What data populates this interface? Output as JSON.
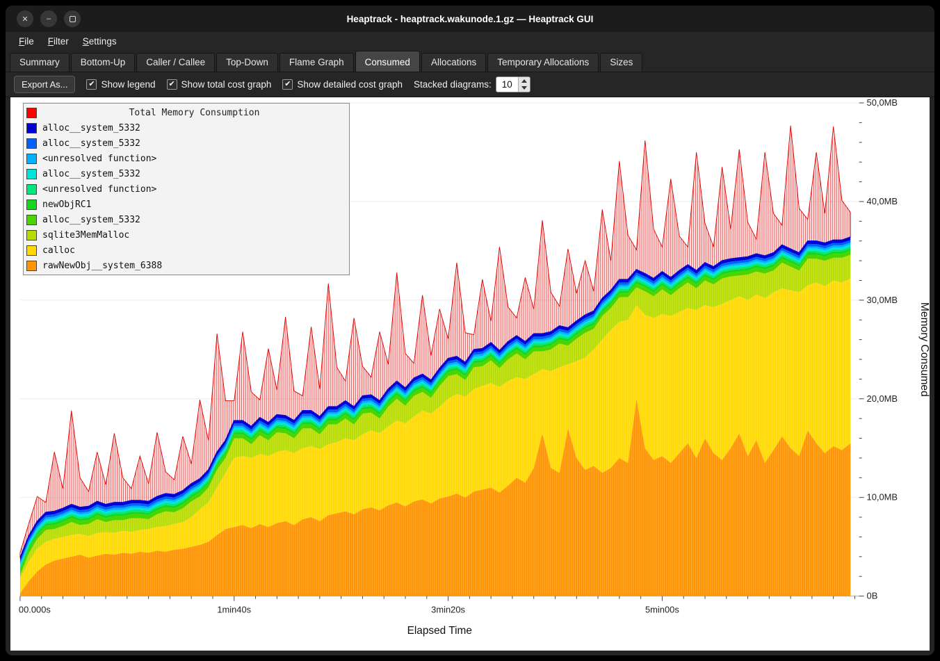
{
  "window": {
    "title": "Heaptrack - heaptrack.wakunode.1.gz — Heaptrack GUI",
    "controls": [
      {
        "name": "close",
        "glyph": "✕"
      },
      {
        "name": "minimize",
        "glyph": "–"
      },
      {
        "name": "maximize",
        "glyph": ""
      }
    ]
  },
  "menubar": {
    "items": [
      "File",
      "Filter",
      "Settings"
    ]
  },
  "tabs": {
    "active": "Consumed",
    "items": [
      "Summary",
      "Bottom-Up",
      "Caller / Callee",
      "Top-Down",
      "Flame Graph",
      "Consumed",
      "Allocations",
      "Temporary Allocations",
      "Sizes"
    ]
  },
  "toolbar": {
    "export_label": "Export As...",
    "checkboxes": [
      {
        "label": "Show legend",
        "checked": true
      },
      {
        "label": "Show total cost graph",
        "checked": true
      },
      {
        "label": "Show detailed cost graph",
        "checked": true
      }
    ],
    "stacked_label": "Stacked diagrams:",
    "stacked_value": "10"
  },
  "legend": {
    "title": "Total Memory Consumption",
    "title_color": "#ff0000",
    "entries": [
      {
        "label": "alloc__system_5332",
        "color": "#0000d0"
      },
      {
        "label": "alloc__system_5332",
        "color": "#0061ff"
      },
      {
        "label": "<unresolved function>",
        "color": "#00b2ff"
      },
      {
        "label": "alloc__system_5332",
        "color": "#00e5db"
      },
      {
        "label": "<unresolved function>",
        "color": "#00e87d"
      },
      {
        "label": "newObjRC1",
        "color": "#16d620"
      },
      {
        "label": "alloc__system_5332",
        "color": "#4ad400"
      },
      {
        "label": "sqlite3MemMalloc",
        "color": "#b8dc00"
      },
      {
        "label": "calloc",
        "color": "#ffd900"
      },
      {
        "label": "rawNewObj__system_6388",
        "color": "#ff9400"
      }
    ]
  },
  "chart_data": {
    "type": "area",
    "title": "Total Memory Consumption",
    "xlabel": "Elapsed Time",
    "ylabel": "Memory Consumed",
    "xlim": [
      0,
      392
    ],
    "ylim": [
      0,
      50
    ],
    "x_step": 4,
    "x_ticks": [
      {
        "t": 0,
        "label": "00.000s"
      },
      {
        "t": 100,
        "label": "1min40s"
      },
      {
        "t": 200,
        "label": "3min20s"
      },
      {
        "t": 300,
        "label": "5min00s"
      }
    ],
    "y_ticks": [
      {
        "v": 0,
        "label": "0B"
      },
      {
        "v": 10,
        "label": "10,0MB"
      },
      {
        "v": 20,
        "label": "20,0MB"
      },
      {
        "v": 30,
        "label": "30,0MB"
      },
      {
        "v": 40,
        "label": "40,0MB"
      },
      {
        "v": 50,
        "label": "50,0MB"
      }
    ],
    "units": "MB",
    "series": [
      {
        "name": "rawNewObj__system_6388",
        "color": "#ff9400",
        "striped": true,
        "values": [
          0.3,
          1.5,
          2.5,
          3.2,
          3.6,
          3.8,
          4.0,
          4.2,
          3.9,
          4.1,
          4.3,
          4.2,
          4.4,
          4.3,
          4.5,
          4.4,
          4.6,
          4.5,
          4.7,
          4.8,
          5.0,
          5.2,
          5.5,
          6.2,
          6.8,
          7.0,
          7.2,
          6.9,
          7.3,
          7.0,
          7.4,
          7.6,
          7.2,
          7.8,
          8.0,
          7.6,
          8.2,
          8.4,
          8.6,
          8.3,
          8.8,
          9.0,
          8.7,
          9.2,
          9.5,
          9.1,
          9.6,
          9.8,
          9.4,
          9.9,
          10.1,
          10.4,
          10.0,
          10.6,
          10.8,
          11.0,
          10.5,
          11.2,
          12.0,
          11.5,
          13.0,
          16.5,
          13.0,
          12.5,
          17.0,
          14.0,
          12.8,
          13.2,
          12.5,
          13.0,
          14.0,
          13.5,
          20.0,
          15.0,
          13.8,
          14.2,
          13.5,
          14.5,
          15.5,
          14.0,
          16.0,
          14.5,
          13.8,
          15.0,
          16.5,
          14.2,
          15.8,
          13.5,
          14.8,
          16.2,
          15.0,
          14.2,
          16.8,
          15.5,
          14.5,
          15.2,
          14.8,
          15.5
        ]
      },
      {
        "name": "calloc",
        "color": "#ffd900",
        "striped": true,
        "values": [
          1.5,
          2.0,
          2.3,
          2.3,
          2.2,
          2.2,
          2.2,
          2.1,
          2.2,
          2.3,
          2.2,
          2.2,
          2.2,
          2.2,
          2.2,
          2.4,
          2.4,
          2.6,
          2.6,
          2.7,
          3.0,
          3.6,
          4.0,
          4.8,
          5.7,
          7.0,
          7.0,
          7.1,
          7.1,
          7.2,
          7.2,
          7.2,
          7.3,
          7.2,
          7.2,
          7.3,
          7.2,
          7.2,
          7.4,
          7.5,
          7.6,
          7.8,
          7.8,
          8.0,
          8.3,
          8.4,
          8.6,
          9.0,
          9.1,
          9.3,
          9.9,
          10.1,
          10.2,
          10.4,
          10.5,
          10.6,
          10.7,
          10.6,
          10.2,
          10.5,
          9.5,
          6.5,
          9.8,
          10.7,
          6.5,
          9.8,
          11.4,
          11.8,
          13.5,
          14.0,
          13.8,
          14.5,
          9.5,
          13.5,
          14.4,
          14.4,
          14.9,
          14.3,
          13.7,
          15.0,
          13.5,
          14.8,
          15.8,
          15.0,
          13.9,
          15.8,
          14.8,
          16.7,
          16.0,
          15.0,
          16.0,
          16.6,
          14.7,
          16.3,
          16.9,
          16.8,
          17.0,
          16.7
        ]
      },
      {
        "name": "sqlite3MemMalloc",
        "color": "#b8dc00",
        "striped": true,
        "values": [
          0.3,
          0.8,
          1.0,
          1.2,
          1.0,
          1.1,
          1.3,
          0.9,
          1.2,
          1.4,
          1.0,
          1.3,
          1.1,
          1.4,
          1.2,
          1.0,
          1.3,
          1.5,
          1.2,
          1.4,
          1.6,
          1.3,
          1.5,
          1.8,
          1.5,
          2.0,
          1.8,
          1.4,
          1.9,
          1.6,
          2.0,
          1.7,
          1.5,
          2.0,
          1.8,
          1.5,
          2.0,
          1.8,
          2.0,
          1.6,
          2.1,
          1.8,
          1.5,
          2.0,
          2.2,
          1.8,
          2.1,
          1.9,
          1.6,
          2.1,
          2.3,
          2.0,
          1.7,
          2.2,
          2.0,
          2.3,
          1.9,
          2.2,
          2.4,
          2.0,
          2.3,
          1.8,
          2.2,
          2.4,
          1.9,
          2.3,
          2.5,
          2.1,
          2.4,
          2.2,
          2.5,
          2.3,
          1.8,
          2.4,
          2.2,
          2.5,
          2.1,
          2.4,
          2.6,
          2.2,
          2.5,
          2.3,
          2.6,
          2.4,
          2.1,
          2.6,
          2.3,
          2.5,
          2.2,
          2.6,
          2.4,
          2.2,
          2.7,
          2.4,
          2.6,
          2.3,
          2.5,
          2.4
        ]
      },
      {
        "name": "alloc__system_5332",
        "color": "#4ad400",
        "thickness": 0.4
      },
      {
        "name": "newObjRC1",
        "color": "#16d620",
        "thickness": 0.25
      },
      {
        "name": "<unresolved function>",
        "color": "#00e87d",
        "thickness": 0.2
      },
      {
        "name": "alloc__system_5332",
        "color": "#00e5db",
        "thickness": 0.2
      },
      {
        "name": "<unresolved function>",
        "color": "#00b2ff",
        "thickness": 0.2
      },
      {
        "name": "alloc__system_5332",
        "color": "#0061ff",
        "thickness": 0.25
      },
      {
        "name": "alloc__system_5332",
        "color": "#0000d0",
        "thickness": 0.3
      }
    ],
    "total": {
      "name": "Total Memory Consumption",
      "color": "#ff0000",
      "spike_values": [
        0.5,
        1.2,
        2.5,
        1.0,
        6.0,
        2.0,
        9.5,
        3.0,
        1.5,
        5.0,
        2.0,
        7.0,
        2.5,
        1.2,
        4.5,
        1.8,
        6.5,
        2.2,
        1.5,
        5.5,
        2.0,
        8.0,
        3.0,
        12.0,
        4.0,
        2.0,
        9.0,
        3.5,
        1.8,
        7.5,
        2.5,
        10.0,
        3.0,
        1.5,
        8.5,
        2.8,
        12.5,
        4.0,
        2.0,
        9.0,
        3.0,
        1.8,
        7.0,
        2.5,
        11.0,
        3.5,
        1.5,
        8.0,
        2.5,
        6.0,
        2.0,
        9.5,
        3.0,
        1.5,
        7.0,
        2.2,
        10.5,
        3.5,
        1.8,
        6.5,
        2.5,
        11.5,
        4.0,
        2.0,
        8.0,
        2.8,
        5.5,
        2.0,
        9.0,
        3.0,
        12.0,
        4.5,
        2.0,
        13.5,
        5.0,
        2.5,
        10.0,
        3.5,
        1.8,
        12.0,
        4.0,
        2.0,
        9.5,
        3.0,
        11.0,
        3.5,
        1.5,
        10.5,
        4.0,
        2.0,
        12.5,
        4.5,
        2.2,
        9.0,
        3.0,
        11.5,
        4.0,
        2.5
      ]
    }
  }
}
